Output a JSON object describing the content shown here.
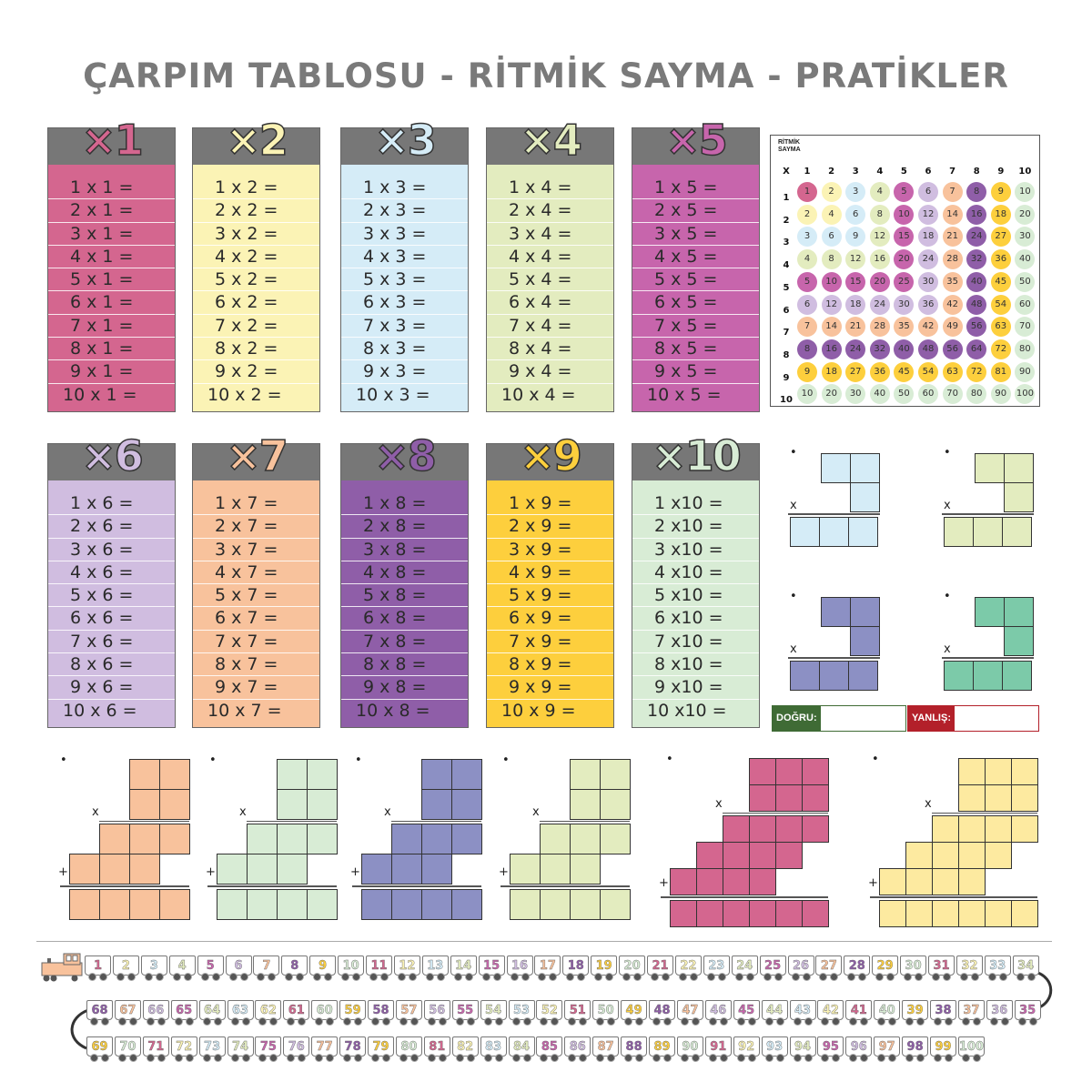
{
  "title": "ÇARPIM TABLOSU - RİTMİK SAYMA - PRATİKLER",
  "colors": [
    "#d4668f",
    "#fbf3b5",
    "#d5ecf7",
    "#e3ecbf",
    "#c765ac",
    "#d0bde0",
    "#f8c29c",
    "#8f5ea8",
    "#fdcf3d",
    "#d8ecd5"
  ],
  "tables": [
    {
      "heading": "×1",
      "rows": [
        "1 x 1 =",
        "2 x 1 =",
        "3 x 1 =",
        "4 x 1 =",
        "5 x 1 =",
        "6 x 1 =",
        "7 x 1 =",
        "8 x 1 =",
        "9 x 1 =",
        "10 x 1 ="
      ]
    },
    {
      "heading": "×2",
      "rows": [
        "1 x 2 =",
        "2 x 2 =",
        "3 x 2 =",
        "4 x 2 =",
        "5 x 2 =",
        "6 x 2 =",
        "7 x 2 =",
        "8 x 2 =",
        "9 x 2 =",
        "10 x 2 ="
      ]
    },
    {
      "heading": "×3",
      "rows": [
        "1 x 3 =",
        "2 x 3 =",
        "3 x 3 =",
        "4 x 3 =",
        "5 x 3 =",
        "6 x 3 =",
        "7 x 3 =",
        "8 x 3 =",
        "9 x 3 =",
        "10 x 3 ="
      ]
    },
    {
      "heading": "×4",
      "rows": [
        "1 x 4 =",
        "2 x 4 =",
        "3 x 4 =",
        "4 x 4 =",
        "5 x 4 =",
        "6 x 4 =",
        "7 x 4 =",
        "8 x 4 =",
        "9 x 4 =",
        "10 x 4 ="
      ]
    },
    {
      "heading": "×5",
      "rows": [
        "1 x 5 =",
        "2 x 5 =",
        "3 x 5 =",
        "4 x 5 =",
        "5 x 5 =",
        "6 x 5 =",
        "7 x 5 =",
        "8 x 5 =",
        "9 x 5 =",
        "10 x 5 ="
      ]
    },
    {
      "heading": "×6",
      "rows": [
        "1 x 6 =",
        "2 x 6 =",
        "3 x 6 =",
        "4 x 6 =",
        "5 x 6 =",
        "6 x 6 =",
        "7 x 6 =",
        "8 x 6 =",
        "9 x 6 =",
        "10 x 6 ="
      ]
    },
    {
      "heading": "×7",
      "rows": [
        "1 x 7 =",
        "2 x 7 =",
        "3 x 7 =",
        "4 x 7 =",
        "5 x 7 =",
        "6 x 7 =",
        "7 x 7 =",
        "8 x 7 =",
        "9 x 7 =",
        "10 x 7 ="
      ]
    },
    {
      "heading": "×8",
      "rows": [
        "1 x 8 =",
        "2 x 8 =",
        "3 x 8 =",
        "4 x 8 =",
        "5 x 8 =",
        "6 x 8 =",
        "7 x 8 =",
        "8 x 8 =",
        "9 x 8 =",
        "10 x 8 ="
      ]
    },
    {
      "heading": "×9",
      "rows": [
        "1 x 9 =",
        "2 x 9 =",
        "3 x 9 =",
        "4 x 9 =",
        "5 x 9 =",
        "6 x 9 =",
        "7 x 9 =",
        "8 x 9 =",
        "9 x 9 =",
        "10 x 9 ="
      ]
    },
    {
      "heading": "×10",
      "rows": [
        "1 x10 =",
        "2 x10 =",
        "3 x10 =",
        "4 x10 =",
        "5 x10 =",
        "6 x10 =",
        "7 x10 =",
        "8 x10 =",
        "9 x10 =",
        "10 x10 ="
      ]
    }
  ],
  "ritmik": {
    "label_line1": "RİTMİK",
    "label_line2": "SAYMA",
    "corner": "X",
    "headers": [
      "1",
      "2",
      "3",
      "4",
      "5",
      "6",
      "7",
      "8",
      "9",
      "10"
    ],
    "rows": [
      [
        "1",
        "2",
        "3",
        "4",
        "5",
        "6",
        "7",
        "8",
        "9",
        "10"
      ],
      [
        "2",
        "4",
        "6",
        "8",
        "10",
        "12",
        "14",
        "16",
        "18",
        "20"
      ],
      [
        "3",
        "6",
        "9",
        "12",
        "15",
        "18",
        "21",
        "24",
        "27",
        "30"
      ],
      [
        "4",
        "8",
        "12",
        "16",
        "20",
        "24",
        "28",
        "32",
        "36",
        "40"
      ],
      [
        "5",
        "10",
        "15",
        "20",
        "25",
        "30",
        "35",
        "40",
        "45",
        "50"
      ],
      [
        "6",
        "12",
        "18",
        "24",
        "30",
        "36",
        "42",
        "48",
        "54",
        "60"
      ],
      [
        "7",
        "14",
        "21",
        "28",
        "35",
        "42",
        "49",
        "56",
        "63",
        "70"
      ],
      [
        "8",
        "16",
        "24",
        "32",
        "40",
        "48",
        "56",
        "64",
        "72",
        "80"
      ],
      [
        "9",
        "18",
        "27",
        "36",
        "45",
        "54",
        "63",
        "72",
        "81",
        "90"
      ],
      [
        "10",
        "20",
        "30",
        "40",
        "50",
        "60",
        "70",
        "80",
        "90",
        "100"
      ]
    ]
  },
  "practice": {
    "bullet": "•",
    "times": "x",
    "plus": "+",
    "small_colors": [
      "#d5ecf7",
      "#e3ecbf",
      "#8c90c4",
      "#7ccaa9"
    ],
    "large_colors": [
      "#f8c29c",
      "#d8ecd5",
      "#8c90c4",
      "#e3ecbf",
      "#d4668f",
      "#fdeaa0"
    ]
  },
  "score": {
    "correct_label": "DOĞRU:",
    "wrong_label": "YANLIŞ:",
    "correct_color": "#3f6b35",
    "wrong_color": "#b3202a"
  },
  "train": {
    "engine_icon": "locomotive-icon",
    "row1": [
      "1",
      "2",
      "3",
      "4",
      "5",
      "6",
      "7",
      "8",
      "9",
      "10",
      "11",
      "12",
      "13",
      "14",
      "15",
      "16",
      "17",
      "18",
      "19",
      "20",
      "21",
      "22",
      "23",
      "24",
      "25",
      "26",
      "27",
      "28",
      "29",
      "30",
      "31",
      "32",
      "33",
      "34"
    ],
    "row2": [
      "68",
      "67",
      "66",
      "65",
      "64",
      "63",
      "62",
      "61",
      "60",
      "59",
      "58",
      "57",
      "56",
      "55",
      "54",
      "53",
      "52",
      "51",
      "50",
      "49",
      "48",
      "47",
      "46",
      "45",
      "44",
      "43",
      "42",
      "41",
      "40",
      "39",
      "38",
      "37",
      "36",
      "35"
    ],
    "row3": [
      "69",
      "70",
      "71",
      "72",
      "73",
      "74",
      "75",
      "76",
      "77",
      "78",
      "79",
      "80",
      "81",
      "82",
      "83",
      "84",
      "85",
      "86",
      "87",
      "88",
      "89",
      "90",
      "91",
      "92",
      "93",
      "94",
      "95",
      "96",
      "97",
      "98",
      "99",
      "100"
    ]
  }
}
